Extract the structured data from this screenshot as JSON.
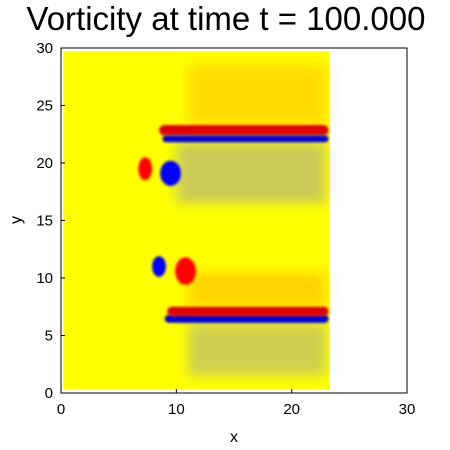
{
  "chart_data": {
    "type": "heatmap",
    "title": "Vorticity at time t = 100.000",
    "xlabel": "x",
    "ylabel": "y",
    "xlim": [
      0,
      30
    ],
    "ylim": [
      0,
      30
    ],
    "xticks": [
      "0",
      "10",
      "20",
      "30"
    ],
    "yticks": [
      "0",
      "5",
      "10",
      "15",
      "20",
      "25",
      "30"
    ],
    "grid": false,
    "colormap": "blue-yellow-red",
    "field_extent": {
      "x": [
        0.2,
        23.3
      ],
      "y": [
        0.3,
        29.7
      ]
    },
    "background_color": "#ffff00",
    "features": [
      {
        "name": "upper-red-band",
        "sign": "positive",
        "shape": "band",
        "x": [
          8.5,
          23.2
        ],
        "y": [
          22.4,
          23.3
        ],
        "color": "#e00000"
      },
      {
        "name": "upper-blue-band",
        "sign": "negative",
        "shape": "band",
        "x": [
          8.8,
          23.2
        ],
        "y": [
          21.8,
          22.4
        ],
        "color": "#0000e0"
      },
      {
        "name": "upper-left-red-vortex",
        "sign": "positive",
        "shape": "vortex",
        "center": [
          7.3,
          19.5
        ],
        "radius": [
          0.6,
          1.0
        ],
        "color": "#ff0000"
      },
      {
        "name": "upper-left-blue-vortex",
        "sign": "negative",
        "shape": "vortex",
        "center": [
          9.5,
          19.1
        ],
        "radius": [
          0.9,
          1.1
        ],
        "color": "#0000ff"
      },
      {
        "name": "lower-blue-vortex",
        "sign": "negative",
        "shape": "vortex",
        "center": [
          8.5,
          11.0
        ],
        "radius": [
          0.6,
          0.9
        ],
        "color": "#0000ff"
      },
      {
        "name": "lower-red-vortex",
        "sign": "positive",
        "shape": "vortex",
        "center": [
          10.8,
          10.6
        ],
        "radius": [
          0.9,
          1.2
        ],
        "color": "#ff0000"
      },
      {
        "name": "lower-blue-band",
        "sign": "negative",
        "shape": "band",
        "x": [
          9.0,
          23.2
        ],
        "y": [
          6.1,
          6.8
        ],
        "color": "#0000e0"
      },
      {
        "name": "lower-red-band",
        "sign": "positive",
        "shape": "band",
        "x": [
          9.2,
          23.2
        ],
        "y": [
          6.7,
          7.5
        ],
        "color": "#e00000"
      }
    ]
  }
}
